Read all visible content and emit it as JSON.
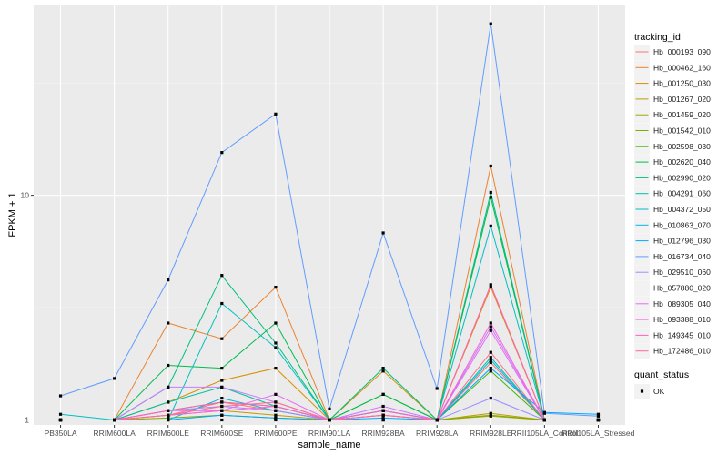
{
  "chart_data": {
    "type": "line",
    "xlabel": "sample_name",
    "ylabel": "FPKM + 1",
    "y_scale": "log10",
    "ylim": [
      0.95,
      70
    ],
    "y_ticks": [
      1,
      10
    ],
    "y_tick_labels": [
      "1",
      "10"
    ],
    "grid": true,
    "legend_position": "right",
    "categories": [
      "PB350LA",
      "RRIM600LA",
      "RRIM600LE",
      "RRIM600SE",
      "RRIM600PE",
      "RRIM901LA",
      "RRIM928BA",
      "RRIM928LA",
      "RRIM928LE",
      "RRII105LA_Control",
      "RRII105LA_Stressed"
    ],
    "legend": {
      "title": "tracking_id",
      "entries": [
        "Hb_000193_090",
        "Hb_000462_160",
        "Hb_001250_030",
        "Hb_001267_020",
        "Hb_001459_020",
        "Hb_001542_010",
        "Hb_002598_030",
        "Hb_002620_040",
        "Hb_002990_020",
        "Hb_004291_060",
        "Hb_004372_050",
        "Hb_010863_070",
        "Hb_012796_030",
        "Hb_016734_040",
        "Hb_029510_060",
        "Hb_057880_020",
        "Hb_089305_040",
        "Hb_093388_010",
        "Hb_149345_010",
        "Hb_172486_010"
      ]
    },
    "shape_legend": {
      "title": "quant_status",
      "entries": [
        "OK"
      ]
    },
    "series": [
      {
        "name": "Hb_000193_090",
        "color": "#F8766D",
        "values": [
          1.0,
          1.0,
          1.05,
          1.2,
          1.1,
          1.0,
          1.05,
          1.0,
          1.8,
          1.0,
          1.0
        ]
      },
      {
        "name": "Hb_000462_160",
        "color": "#EA8331",
        "values": [
          1.0,
          1.0,
          2.7,
          2.3,
          3.9,
          1.0,
          1.0,
          1.0,
          13.5,
          1.0,
          1.0
        ]
      },
      {
        "name": "Hb_001250_030",
        "color": "#D89000",
        "values": [
          1.0,
          1.0,
          1.2,
          1.5,
          1.7,
          1.0,
          1.65,
          1.0,
          3.9,
          1.0,
          1.0
        ]
      },
      {
        "name": "Hb_001267_020",
        "color": "#C09B00",
        "values": [
          1.0,
          1.0,
          1.05,
          1.1,
          1.05,
          1.0,
          1.0,
          1.0,
          1.07,
          1.0,
          1.0
        ]
      },
      {
        "name": "Hb_001459_020",
        "color": "#A3A500",
        "values": [
          1.0,
          1.0,
          1.0,
          1.0,
          1.0,
          1.0,
          1.0,
          1.0,
          1.04,
          1.0,
          1.0
        ]
      },
      {
        "name": "Hb_001542_010",
        "color": "#7CAE00",
        "values": [
          1.0,
          1.0,
          1.02,
          1.05,
          1.02,
          1.0,
          1.0,
          1.0,
          1.05,
          1.0,
          1.0
        ]
      },
      {
        "name": "Hb_002598_030",
        "color": "#39B600",
        "values": [
          1.0,
          1.0,
          1.1,
          1.2,
          1.15,
          1.0,
          1.3,
          1.0,
          1.65,
          1.0,
          1.0
        ]
      },
      {
        "name": "Hb_002620_040",
        "color": "#00BB4E",
        "values": [
          1.0,
          1.0,
          1.75,
          1.7,
          2.7,
          1.0,
          1.3,
          1.0,
          9.8,
          1.0,
          1.0
        ]
      },
      {
        "name": "Hb_002990_020",
        "color": "#00BF7D",
        "values": [
          1.0,
          1.0,
          1.4,
          4.4,
          2.2,
          1.0,
          1.7,
          1.0,
          10.3,
          1.0,
          1.0
        ]
      },
      {
        "name": "Hb_004291_060",
        "color": "#00C1A3",
        "values": [
          1.0,
          1.0,
          1.2,
          1.4,
          1.15,
          1.0,
          1.1,
          1.0,
          1.9,
          1.0,
          1.0
        ]
      },
      {
        "name": "Hb_004372_050",
        "color": "#00BFC4",
        "values": [
          1.06,
          1.0,
          1.0,
          3.3,
          2.1,
          1.0,
          1.1,
          1.0,
          7.3,
          1.0,
          1.0
        ]
      },
      {
        "name": "Hb_010863_070",
        "color": "#00B8E5",
        "values": [
          1.0,
          1.0,
          1.0,
          1.25,
          1.1,
          1.0,
          1.1,
          1.0,
          1.85,
          1.0,
          1.0
        ]
      },
      {
        "name": "Hb_012796_030",
        "color": "#00A9FF",
        "values": [
          1.0,
          1.0,
          1.0,
          1.05,
          1.02,
          1.0,
          1.02,
          1.0,
          1.7,
          1.08,
          1.06
        ]
      },
      {
        "name": "Hb_016734_040",
        "color": "#619CFF",
        "values": [
          1.28,
          1.53,
          4.2,
          15.5,
          23.0,
          1.12,
          6.8,
          1.38,
          58.0,
          1.07,
          1.04
        ]
      },
      {
        "name": "Hb_029510_060",
        "color": "#9F8CFF",
        "values": [
          1.0,
          1.0,
          1.1,
          1.15,
          1.1,
          1.0,
          1.05,
          1.0,
          1.25,
          1.0,
          1.0
        ]
      },
      {
        "name": "Hb_057880_020",
        "color": "#C77CFF",
        "values": [
          1.0,
          1.0,
          1.4,
          1.4,
          1.2,
          1.0,
          1.15,
          1.0,
          2.6,
          1.0,
          1.0
        ]
      },
      {
        "name": "Hb_089305_040",
        "color": "#E76BF3",
        "values": [
          1.0,
          1.0,
          1.1,
          1.1,
          1.3,
          1.0,
          1.1,
          1.0,
          2.5,
          1.0,
          1.0
        ]
      },
      {
        "name": "Hb_093388_010",
        "color": "#FA62DB",
        "values": [
          1.0,
          1.0,
          1.05,
          1.1,
          1.15,
          1.0,
          1.05,
          1.0,
          2.7,
          1.0,
          1.0
        ]
      },
      {
        "name": "Hb_149345_010",
        "color": "#FF62BC",
        "values": [
          1.0,
          1.0,
          1.1,
          1.2,
          1.15,
          1.0,
          1.1,
          1.0,
          4.0,
          1.0,
          1.0
        ]
      },
      {
        "name": "Hb_172486_010",
        "color": "#FF6C91",
        "values": [
          1.0,
          1.0,
          1.05,
          1.15,
          1.2,
          1.0,
          1.05,
          1.0,
          2.0,
          1.0,
          1.0
        ]
      }
    ]
  }
}
